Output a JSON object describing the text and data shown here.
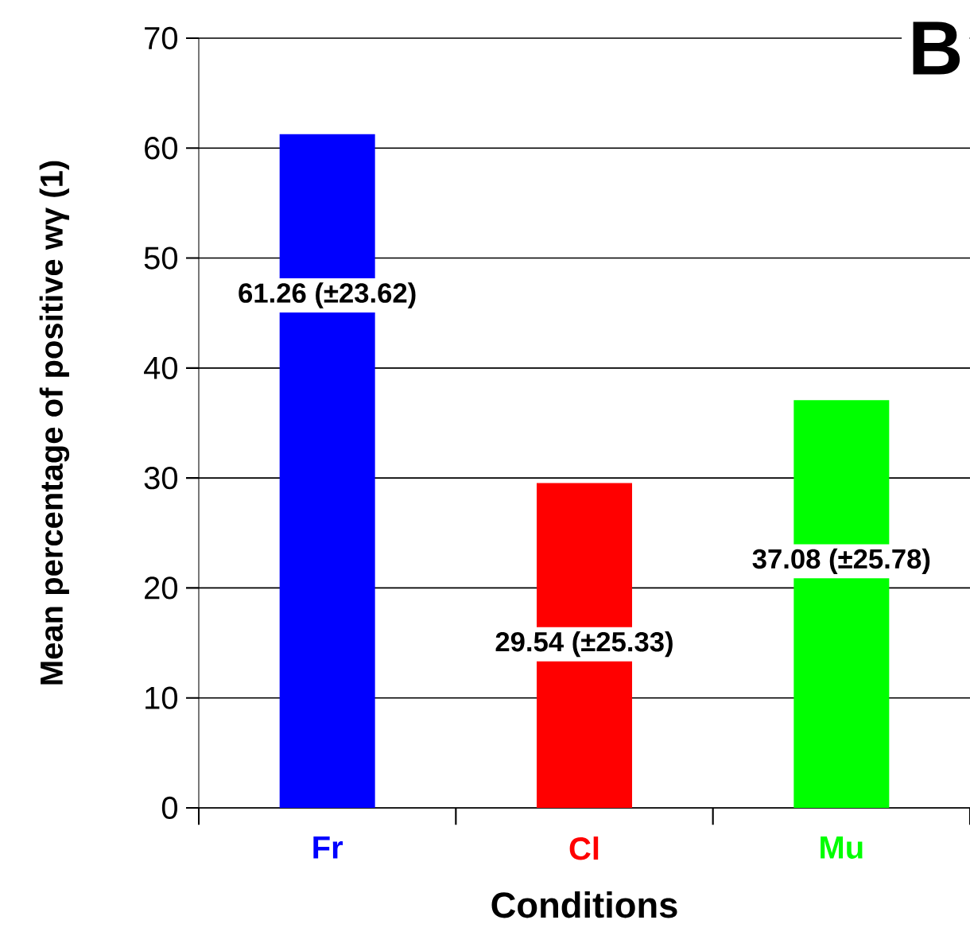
{
  "chart_data": {
    "type": "bar",
    "xlabel": "Conditions",
    "ylabel": "Mean percentage of positive wγ (1)",
    "annotations": [
      "B"
    ],
    "categories": [
      "Fr",
      "Cl",
      "Mu"
    ],
    "values": [
      61.26,
      29.54,
      37.08
    ],
    "colors": [
      "#0000ff",
      "#ff0000",
      "#00ff00"
    ],
    "value_labels": [
      "61.26 (±23.62)",
      "29.54 (±25.33)",
      "37.08 (±25.78)"
    ],
    "ylim": [
      0,
      70
    ],
    "yticks": [
      0,
      10,
      20,
      30,
      40,
      50,
      60,
      70
    ],
    "grid": "y"
  }
}
